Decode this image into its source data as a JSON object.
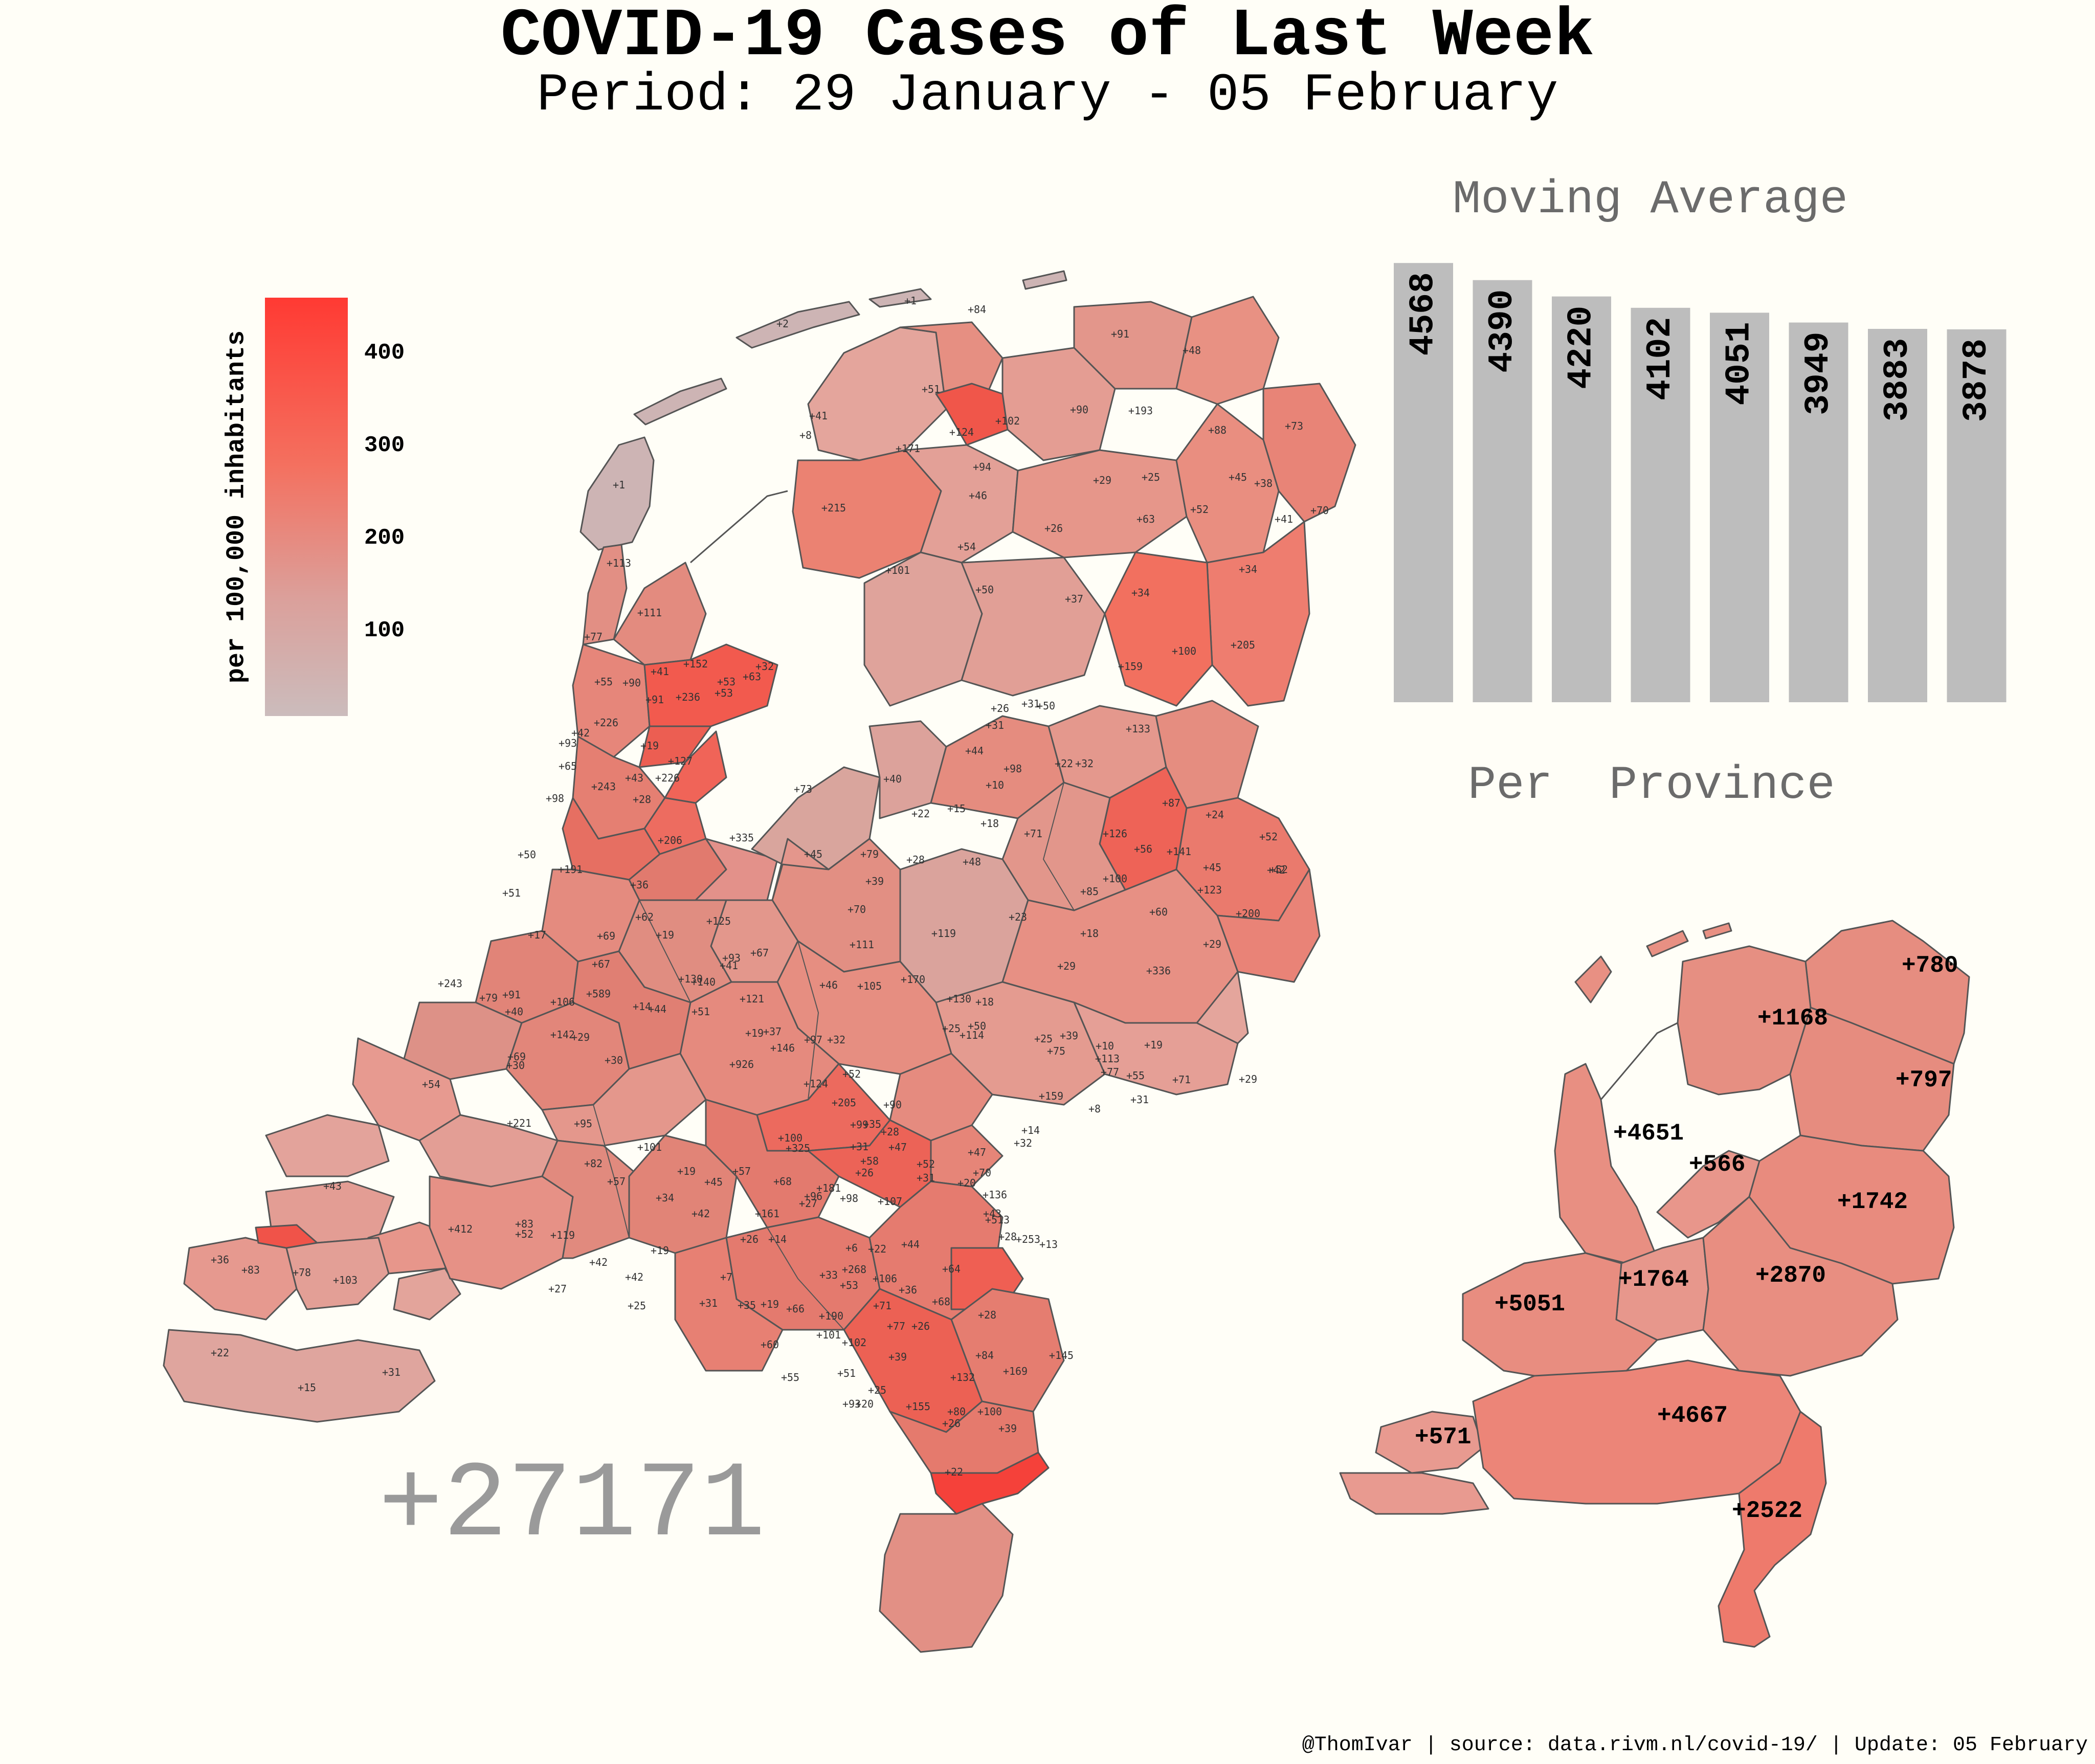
{
  "title": "COVID-19 Cases of Last Week",
  "subtitle": "Period: 29 January - 05 February",
  "legend": {
    "title": "per 100,000 inhabitants",
    "ticks": [
      "400",
      "300",
      "200",
      "100"
    ],
    "colors": {
      "high": "#ff3a33",
      "mid": "#f4705f",
      "low": "#cbbcbc"
    }
  },
  "total_label": "+27171",
  "moving_average": {
    "title": "Moving Average",
    "values": [
      4568,
      4390,
      4220,
      4102,
      4051,
      3949,
      3883,
      3878
    ]
  },
  "per_province": {
    "title": "Per  Province",
    "values": [
      {
        "name": "Groningen",
        "label": "+780"
      },
      {
        "name": "Friesland",
        "label": "+1168"
      },
      {
        "name": "Drenthe",
        "label": "+797"
      },
      {
        "name": "Noord-Holland",
        "label": "+4651"
      },
      {
        "name": "Flevoland",
        "label": "+566"
      },
      {
        "name": "Overijssel",
        "label": "+1742"
      },
      {
        "name": "Gelderland",
        "label": "+2870"
      },
      {
        "name": "Utrecht",
        "label": "+1764"
      },
      {
        "name": "Zuid-Holland",
        "label": "+5051"
      },
      {
        "name": "Noord-Brabant",
        "label": "+4667"
      },
      {
        "name": "Zeeland",
        "label": "+571"
      },
      {
        "name": "Limburg",
        "label": "+2522"
      }
    ]
  },
  "municipality_labels": [
    "+2",
    "+1",
    "+84",
    "+91",
    "+48",
    "+51",
    "+102",
    "+124",
    "+41",
    "+8",
    "+171",
    "+94",
    "+90",
    "+193",
    "+88",
    "+73",
    "+1",
    "+215",
    "+46",
    "+29",
    "+25",
    "+63",
    "+52",
    "+45",
    "+38",
    "+41",
    "+70",
    "+26",
    "+54",
    "+101",
    "+34",
    "+113",
    "+111",
    "+50",
    "+37",
    "+34",
    "+205",
    "+100",
    "+159",
    "+77",
    "+152",
    "+53",
    "+63",
    "+32",
    "+55",
    "+90",
    "+91",
    "+236",
    "+53",
    "+41",
    "+26",
    "+31",
    "+226",
    "+19",
    "+127",
    "+50",
    "+31",
    "+133",
    "+42",
    "+43",
    "+226",
    "+65",
    "+243",
    "+93",
    "+98",
    "+28",
    "+44",
    "+98",
    "+22",
    "+32",
    "+73",
    "+40",
    "+10",
    "+87",
    "+24",
    "+22",
    "+15",
    "+18",
    "+71",
    "+126",
    "+56",
    "+141",
    "+52",
    "+45",
    "+42",
    "+335",
    "+45",
    "+79",
    "+28",
    "+48",
    "+100",
    "+123",
    "+52",
    "+206",
    "+191",
    "+39",
    "+85",
    "+60",
    "+200",
    "+51",
    "+50",
    "+36",
    "+62",
    "+70",
    "+119",
    "+23",
    "+18",
    "+29",
    "+69",
    "+125",
    "+111",
    "+19",
    "+93",
    "+67",
    "+41",
    "+17",
    "+67",
    "+130",
    "+46",
    "+336",
    "+243",
    "+589",
    "+91",
    "+140",
    "+105",
    "+29",
    "+170",
    "+79",
    "+121",
    "+14",
    "+106",
    "+44",
    "+51",
    "+40",
    "+130",
    "+18",
    "+142",
    "+19",
    "+37",
    "+50",
    "+29",
    "+146",
    "+97",
    "+32",
    "+25",
    "+114",
    "+39",
    "+10",
    "+19",
    "+77",
    "+71",
    "+31",
    "+55",
    "+69",
    "+30",
    "+54",
    "+30",
    "+926",
    "+124",
    "+52",
    "+25",
    "+75",
    "+113",
    "+221",
    "+95",
    "+99",
    "+90",
    "+205",
    "+159",
    "+8",
    "+35",
    "+28",
    "+47",
    "+82",
    "+101",
    "+325",
    "+100",
    "+31",
    "+14",
    "+29",
    "+70",
    "+43",
    "+32",
    "+52",
    "+57",
    "+19",
    "+57",
    "+58",
    "+47",
    "+68",
    "+181",
    "+26",
    "+31",
    "+20",
    "+96",
    "+98",
    "+45",
    "+107",
    "+136",
    "+43",
    "+34",
    "+412",
    "+83",
    "+52",
    "+119",
    "+42",
    "+42",
    "+161",
    "+27",
    "+13",
    "+19",
    "+14",
    "+7",
    "+6",
    "+26",
    "+22",
    "+44",
    "+64",
    "+28",
    "+513",
    "+253",
    "+36",
    "+83",
    "+78",
    "+103",
    "+27",
    "+42",
    "+25",
    "+53",
    "+36",
    "+31",
    "+35",
    "+19",
    "+33",
    "+268",
    "+106",
    "+28",
    "+71",
    "+66",
    "+60",
    "+101",
    "+102",
    "+190",
    "+68",
    "+77",
    "+26",
    "+84",
    "+39",
    "+145",
    "+169",
    "+55",
    "+51",
    "+25",
    "+80",
    "+100",
    "+155",
    "+93",
    "+26",
    "+132",
    "+20",
    "+22",
    "+15",
    "+31",
    "+39",
    "+22"
  ],
  "footer": "@ThomIvar | source: data.rivm.nl/covid-19/ | Update: 05 February"
}
